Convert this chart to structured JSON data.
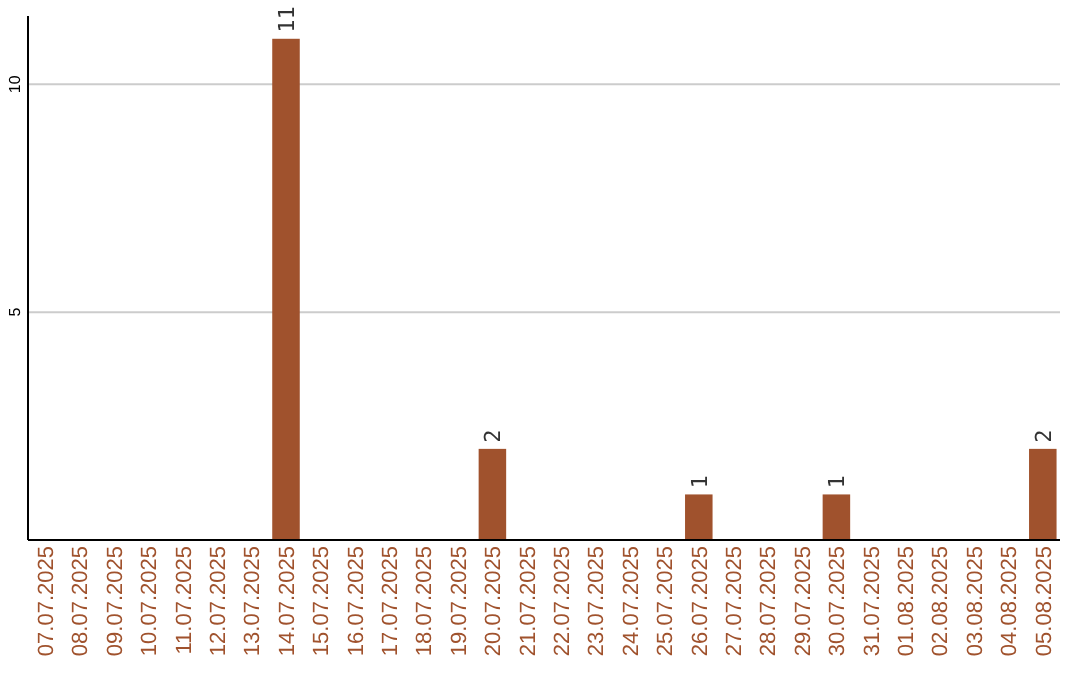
{
  "chart_data": {
    "type": "bar",
    "categories": [
      "07.07.2025",
      "08.07.2025",
      "09.07.2025",
      "10.07.2025",
      "11.07.2025",
      "12.07.2025",
      "13.07.2025",
      "14.07.2025",
      "15.07.2025",
      "16.07.2025",
      "17.07.2025",
      "18.07.2025",
      "19.07.2025",
      "20.07.2025",
      "21.07.2025",
      "22.07.2025",
      "23.07.2025",
      "24.07.2025",
      "25.07.2025",
      "26.07.2025",
      "27.07.2025",
      "28.07.2025",
      "29.07.2025",
      "30.07.2025",
      "31.07.2025",
      "01.08.2025",
      "02.08.2025",
      "03.08.2025",
      "04.08.2025",
      "05.08.2025"
    ],
    "values": [
      0,
      0,
      0,
      0,
      0,
      0,
      0,
      11,
      0,
      0,
      0,
      0,
      0,
      2,
      0,
      0,
      0,
      0,
      0,
      1,
      0,
      0,
      0,
      1,
      0,
      0,
      0,
      0,
      0,
      2
    ],
    "value_labels": [
      null,
      null,
      null,
      null,
      null,
      null,
      null,
      "11",
      null,
      null,
      null,
      null,
      null,
      "2",
      null,
      null,
      null,
      null,
      null,
      "1",
      null,
      null,
      null,
      "1",
      null,
      null,
      null,
      null,
      null,
      "2"
    ],
    "color": "#a0522d",
    "ylim": [
      0,
      11.5
    ],
    "yticks": [
      5,
      10
    ],
    "grid": "y"
  }
}
